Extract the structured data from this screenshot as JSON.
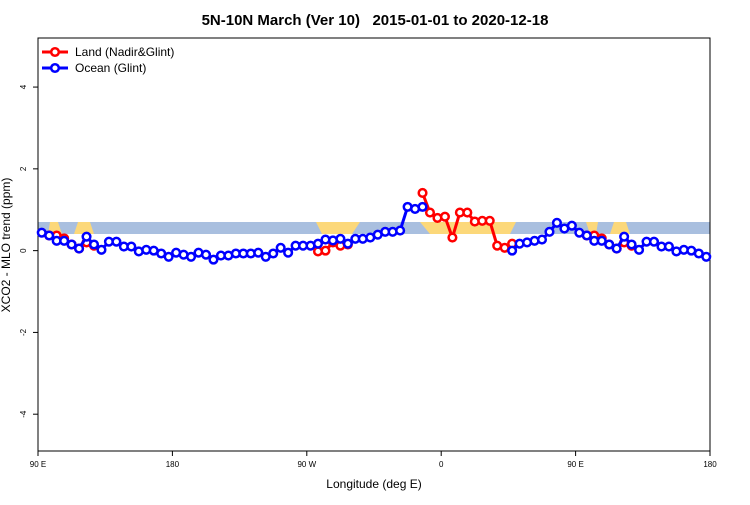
{
  "chart_data": {
    "type": "line",
    "title": "5N-10N March (Ver 10)   2015-01-01 to 2020-12-18",
    "x_label": "Longitude (deg E)",
    "y_label": "XCO2 - MLO trend (ppm)",
    "x": [
      92.5,
      97.5,
      102.5,
      107.5,
      112.5,
      117.5,
      122.5,
      127.5,
      132.5,
      137.5,
      142.5,
      147.5,
      152.5,
      157.5,
      162.5,
      167.5,
      172.5,
      177.5,
      182.5,
      187.5,
      192.5,
      197.5,
      202.5,
      207.5,
      212.5,
      217.5,
      222.5,
      227.5,
      232.5,
      237.5,
      242.5,
      247.5,
      252.5,
      257.5,
      262.5,
      267.5,
      272.5,
      277.5,
      282.5,
      287.5,
      292.5,
      297.5,
      302.5,
      307.5,
      312.5,
      317.5,
      322.5,
      327.5,
      332.5,
      337.5,
      342.5,
      347.5,
      352.5,
      357.5,
      362.5,
      367.5,
      372.5,
      377.5,
      382.5,
      387.5,
      392.5,
      397.5,
      402.5,
      407.5,
      412.5,
      417.5,
      422.5,
      427.5,
      432.5,
      437.5,
      442.5,
      447.5,
      452.5,
      457.5,
      462.5,
      467.5,
      472.5,
      477.5,
      482.5,
      487.5,
      492.5,
      497.5,
      502.5,
      507.5,
      512.5,
      517.5,
      522.5,
      527.5,
      532.5,
      537.5
    ],
    "series": [
      {
        "name": "Land (Nadir&Glint)",
        "color": "#ff0000",
        "values": [
          null,
          0.37,
          0.37,
          0.3,
          0.15,
          0.05,
          0.2,
          0.12,
          null,
          null,
          null,
          null,
          null,
          null,
          null,
          null,
          null,
          null,
          null,
          null,
          null,
          null,
          null,
          null,
          null,
          null,
          null,
          null,
          null,
          null,
          null,
          null,
          null,
          null,
          null,
          null,
          null,
          -0.02,
          0,
          0.2,
          0.12,
          0.15,
          null,
          null,
          null,
          null,
          null,
          null,
          null,
          null,
          null,
          1.41,
          0.93,
          0.8,
          0.83,
          0.32,
          0.93,
          0.93,
          0.71,
          0.73,
          0.73,
          0.12,
          0.07,
          0.17,
          null,
          null,
          null,
          null,
          null,
          null,
          null,
          null,
          null,
          0.37,
          0.37,
          0.3,
          0.15,
          0.05,
          0.2,
          0.12,
          null,
          null,
          null,
          null,
          null,
          null,
          null,
          null,
          null,
          null
        ]
      },
      {
        "name": "Ocean (Glint)",
        "color": "#0000ff",
        "values": [
          0.44,
          0.37,
          0.24,
          0.24,
          0.15,
          0.05,
          0.34,
          0.15,
          0.02,
          0.22,
          0.22,
          0.1,
          0.1,
          -0.02,
          0.02,
          0,
          -0.07,
          -0.15,
          -0.05,
          -0.1,
          -0.15,
          -0.05,
          -0.1,
          -0.22,
          -0.12,
          -0.12,
          -0.07,
          -0.07,
          -0.07,
          -0.05,
          -0.15,
          -0.07,
          0.07,
          -0.05,
          0.12,
          0.12,
          0.12,
          0.17,
          0.27,
          0.25,
          0.29,
          0.17,
          0.29,
          0.29,
          0.32,
          0.39,
          0.46,
          0.46,
          0.49,
          1.07,
          1.02,
          1.07,
          null,
          null,
          null,
          null,
          null,
          null,
          null,
          null,
          null,
          null,
          null,
          0,
          0.17,
          0.2,
          0.24,
          0.27,
          0.46,
          0.68,
          0.54,
          0.61,
          0.44,
          0.37,
          0.24,
          0.24,
          0.15,
          0.05,
          0.34,
          0.15,
          0.02,
          0.22,
          0.22,
          0.1,
          0.1,
          -0.02,
          0.02,
          0,
          -0.07,
          -0.15
        ]
      }
    ],
    "xlim": [
      90,
      540
    ],
    "xticks": [
      {
        "value": 90,
        "label": "90 E"
      },
      180,
      {
        "value": 270,
        "label": "90 W"
      },
      {
        "value": 360,
        "label": "0"
      },
      {
        "value": 450,
        "label": "90 E"
      },
      {
        "value": 540,
        "label": "180"
      }
    ],
    "ylim": [
      -4.9,
      5.2
    ],
    "yticks": [
      -4,
      -2,
      0,
      2,
      4
    ],
    "legend": "top-left"
  }
}
